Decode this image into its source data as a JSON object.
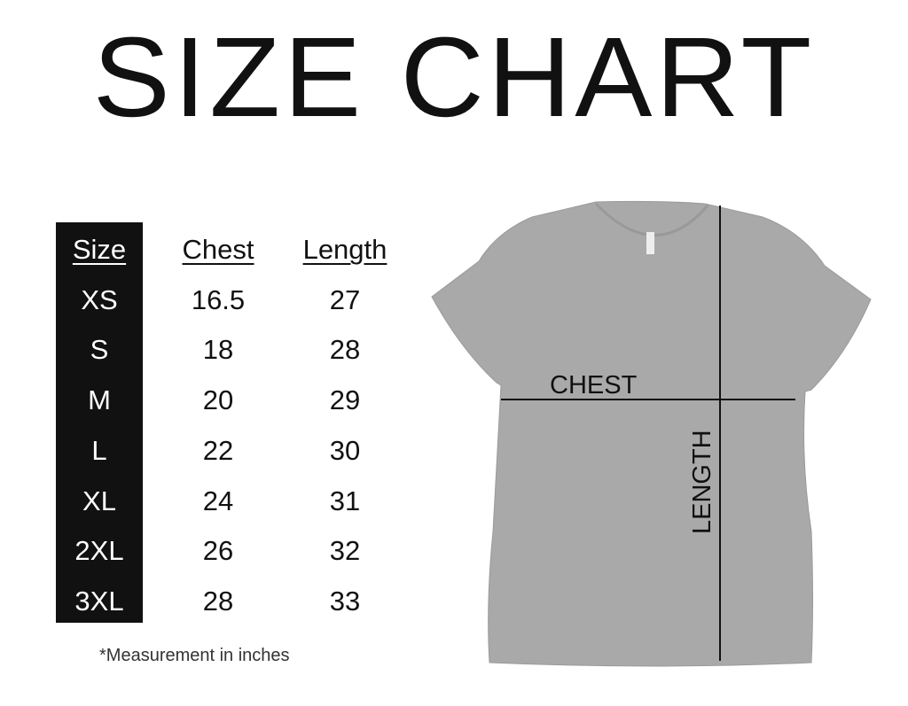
{
  "title": "SIZE CHART",
  "table": {
    "headers": [
      "Size",
      "Chest",
      "Length"
    ],
    "rows": [
      [
        "XS",
        "16.5",
        "27"
      ],
      [
        "S",
        "18",
        "28"
      ],
      [
        "M",
        "20",
        "29"
      ],
      [
        "L",
        "22",
        "30"
      ],
      [
        "XL",
        "24",
        "31"
      ],
      [
        "2XL",
        "26",
        "32"
      ],
      [
        "3XL",
        "28",
        "33"
      ]
    ]
  },
  "footnote": "*Measurement in inches",
  "diagram": {
    "chest_label": "CHEST",
    "length_label": "LENGTH",
    "shirt_color": "#a9a9a9"
  }
}
